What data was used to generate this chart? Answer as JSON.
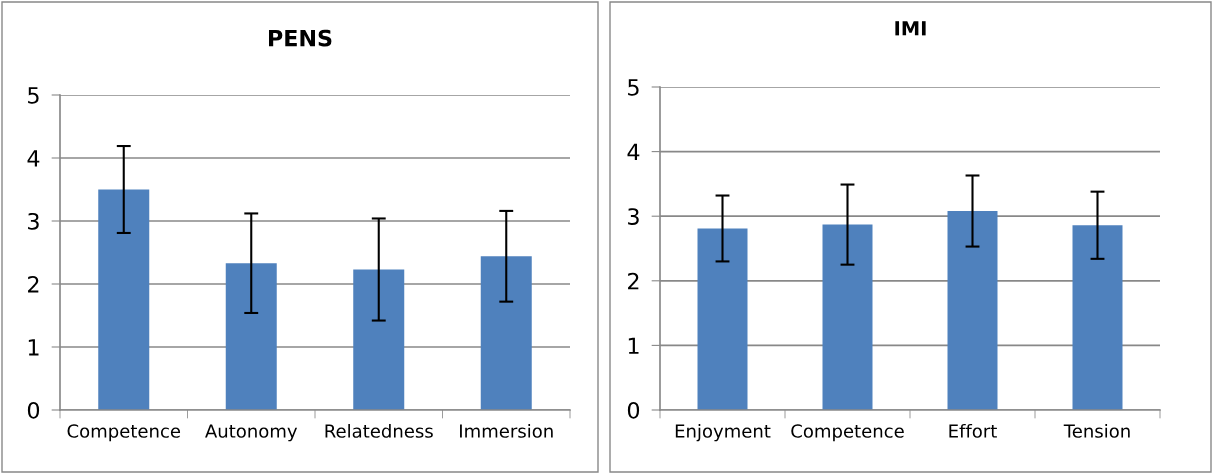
{
  "chart_data": [
    {
      "type": "bar",
      "title": "PENS",
      "categories": [
        "Competence",
        "Autonomy",
        "Relatedness",
        "Immersion"
      ],
      "values": [
        3.5,
        2.33,
        2.23,
        2.44
      ],
      "errors": [
        0.69,
        0.79,
        0.81,
        0.72
      ],
      "color": "#4f81bd",
      "ylim": [
        0,
        5
      ],
      "yticks": [
        0,
        1,
        2,
        3,
        4,
        5
      ],
      "grid": "y"
    },
    {
      "type": "bar",
      "title": "IMI",
      "categories": [
        "Enjoyment",
        "Competence",
        "Effort",
        "Tension"
      ],
      "values": [
        2.81,
        2.87,
        3.08,
        2.86
      ],
      "errors": [
        0.51,
        0.62,
        0.55,
        0.52
      ],
      "color": "#4f81bd",
      "ylim": [
        0,
        5
      ],
      "yticks": [
        0,
        1,
        2,
        3,
        4,
        5
      ],
      "grid": "y"
    }
  ]
}
